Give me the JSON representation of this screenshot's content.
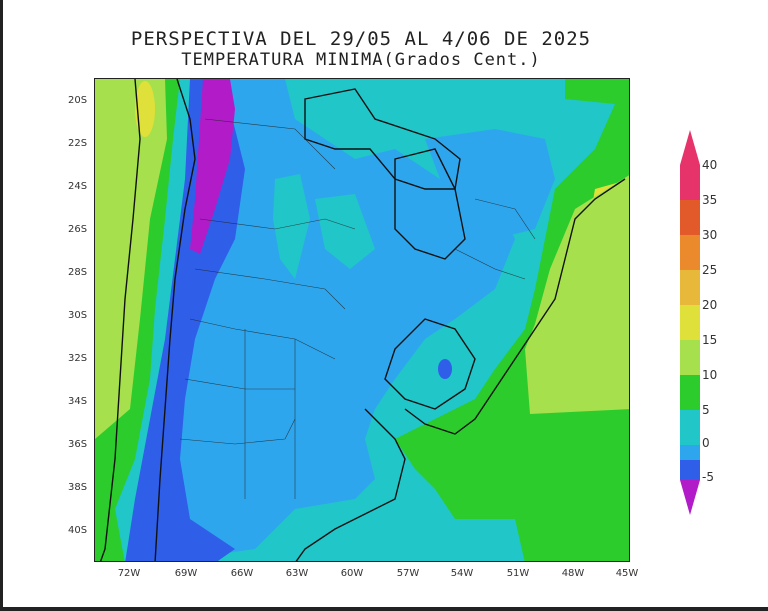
{
  "title": {
    "line1": "PERSPECTIVA DEL 29/05 AL 4/06 DE 2025",
    "line2": "TEMPERATURA MINIMA(Grados Cent.)"
  },
  "axes": {
    "y_ticks": [
      "20S",
      "22S",
      "24S",
      "26S",
      "28S",
      "30S",
      "32S",
      "34S",
      "36S",
      "38S",
      "40S"
    ],
    "x_ticks": [
      "72W",
      "69W",
      "66W",
      "63W",
      "60W",
      "57W",
      "54W",
      "51W",
      "48W",
      "45W"
    ]
  },
  "legend": {
    "labels": [
      "40",
      "35",
      "30",
      "25",
      "20",
      "15",
      "10",
      "5",
      "0",
      "-5"
    ],
    "colors": [
      "#e6336a",
      "#e25a2a",
      "#ea8a2c",
      "#e7b83a",
      "#dfe03a",
      "#a6e04d",
      "#2ccc2c",
      "#21c6c8",
      "#2ea6ee",
      "#2f5ee8",
      "#b11cc8"
    ]
  },
  "colors": {
    "green": "#2ccc2c",
    "light_green": "#a6e04d",
    "cyan": "#21c6c8",
    "light_blue": "#2ea6ee",
    "blue": "#2f5ee8",
    "purple": "#b11cc8",
    "yellow": "#dfe03a"
  }
}
